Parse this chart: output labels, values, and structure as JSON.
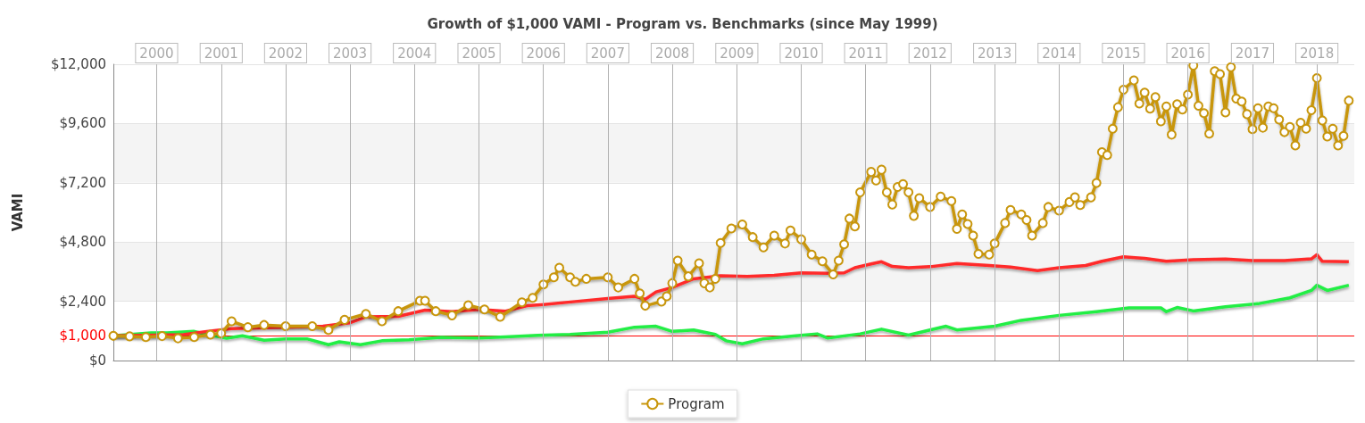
{
  "chart_data": {
    "type": "line",
    "title": "Growth of $1,000 VAMI - Program vs. Benchmarks (since May 1999)",
    "ylabel": "VAMI",
    "xlim": [
      "1999-05",
      "2018-08"
    ],
    "xticks": [
      {
        "value": "2000-01",
        "label": "2000"
      },
      {
        "value": "2001-01",
        "label": "2001"
      },
      {
        "value": "2002-01",
        "label": "2002"
      },
      {
        "value": "2003-01",
        "label": "2003"
      },
      {
        "value": "2004-01",
        "label": "2004"
      },
      {
        "value": "2005-01",
        "label": "2005"
      },
      {
        "value": "2006-01",
        "label": "2006"
      },
      {
        "value": "2007-01",
        "label": "2007"
      },
      {
        "value": "2008-01",
        "label": "2008"
      },
      {
        "value": "2009-01",
        "label": "2009"
      },
      {
        "value": "2010-01",
        "label": "2010"
      },
      {
        "value": "2011-01",
        "label": "2011"
      },
      {
        "value": "2012-01",
        "label": "2012"
      },
      {
        "value": "2013-01",
        "label": "2013"
      },
      {
        "value": "2014-01",
        "label": "2014"
      },
      {
        "value": "2015-01",
        "label": "2015"
      },
      {
        "value": "2016-01",
        "label": "2016"
      },
      {
        "value": "2017-01",
        "label": "2017"
      },
      {
        "value": "2018-01",
        "label": "2018"
      }
    ],
    "ylim": [
      0,
      12000
    ],
    "yticks": [
      {
        "value": 0,
        "label": "$0"
      },
      {
        "value": 2400,
        "label": "$2,400"
      },
      {
        "value": 4800,
        "label": "$4,800"
      },
      {
        "value": 7200,
        "label": "$7,200"
      },
      {
        "value": 9600,
        "label": "$9,600"
      },
      {
        "value": 12000,
        "label": "$12,000"
      }
    ],
    "ref_lines": [
      {
        "axis": "y",
        "value": 1000,
        "label": "$1,000",
        "color": "#ff0000"
      }
    ],
    "grid": true,
    "legend": "bottom",
    "marker": "circle",
    "series": [
      {
        "name": "Program",
        "color": "#c8960c",
        "x": [
          "1999-05",
          "1999-08",
          "1999-11",
          "2000-02",
          "2000-05",
          "2000-08",
          "2000-11",
          "2001-01",
          "2001-03",
          "2001-06",
          "2001-09",
          "2002-01",
          "2002-06",
          "2002-09",
          "2002-12",
          "2003-04",
          "2003-07",
          "2003-10",
          "2004-02",
          "2004-03",
          "2004-05",
          "2004-08",
          "2004-11",
          "2005-02",
          "2005-05",
          "2005-09",
          "2005-11",
          "2006-01",
          "2006-03",
          "2006-04",
          "2006-06",
          "2006-07",
          "2006-09",
          "2007-01",
          "2007-03",
          "2007-06",
          "2007-07",
          "2007-08",
          "2007-11",
          "2007-12",
          "2008-01",
          "2008-02",
          "2008-04",
          "2008-06",
          "2008-07",
          "2008-08",
          "2008-09",
          "2008-10",
          "2008-12",
          "2009-02",
          "2009-04",
          "2009-06",
          "2009-08",
          "2009-10",
          "2009-11",
          "2010-01",
          "2010-03",
          "2010-05",
          "2010-07",
          "2010-08",
          "2010-09",
          "2010-10",
          "2010-11",
          "2010-12",
          "2011-02",
          "2011-03",
          "2011-04",
          "2011-05",
          "2011-06",
          "2011-07",
          "2011-08",
          "2011-09",
          "2011-10",
          "2011-11",
          "2012-01",
          "2012-03",
          "2012-05",
          "2012-06",
          "2012-07",
          "2012-08",
          "2012-09",
          "2012-10",
          "2012-12",
          "2013-01",
          "2013-03",
          "2013-04",
          "2013-06",
          "2013-07",
          "2013-08",
          "2013-10",
          "2013-11",
          "2014-01",
          "2014-03",
          "2014-04",
          "2014-05",
          "2014-07",
          "2014-08",
          "2014-09",
          "2014-10",
          "2014-11",
          "2014-12",
          "2015-01",
          "2015-03",
          "2015-04",
          "2015-05",
          "2015-06",
          "2015-07",
          "2015-08",
          "2015-09",
          "2015-10",
          "2015-11",
          "2015-12",
          "2016-01",
          "2016-02",
          "2016-03",
          "2016-04",
          "2016-05",
          "2016-06",
          "2016-07",
          "2016-08",
          "2016-09",
          "2016-10",
          "2016-11",
          "2016-12",
          "2017-01",
          "2017-02",
          "2017-03",
          "2017-04",
          "2017-05",
          "2017-06",
          "2017-07",
          "2017-08",
          "2017-09",
          "2017-10",
          "2017-11",
          "2017-12",
          "2018-01",
          "2018-02",
          "2018-03",
          "2018-04",
          "2018-05",
          "2018-06",
          "2018-07"
        ],
        "values": [
          1000,
          980,
          950,
          990,
          900,
          950,
          1050,
          1100,
          1590,
          1350,
          1440,
          1390,
          1390,
          1240,
          1650,
          1890,
          1590,
          2000,
          2420,
          2420,
          2000,
          1830,
          2240,
          2070,
          1770,
          2360,
          2540,
          3080,
          3370,
          3760,
          3370,
          3190,
          3310,
          3370,
          2960,
          3310,
          2720,
          2220,
          2390,
          2600,
          3130,
          4050,
          3410,
          3940,
          3130,
          2960,
          3310,
          4760,
          5350,
          5510,
          5000,
          4580,
          5060,
          4740,
          5270,
          4910,
          4290,
          4020,
          3490,
          4050,
          4710,
          5750,
          5430,
          6810,
          7640,
          7290,
          7730,
          6810,
          6320,
          7030,
          7150,
          6810,
          5860,
          6580,
          6220,
          6640,
          6460,
          5330,
          5920,
          5530,
          5060,
          4320,
          4290,
          4740,
          5570,
          6100,
          5920,
          5690,
          5060,
          5570,
          6220,
          6070,
          6420,
          6610,
          6300,
          6610,
          7190,
          8440,
          8320,
          9390,
          10260,
          10970,
          11350,
          10410,
          10850,
          10200,
          10670,
          9690,
          10290,
          9150,
          10380,
          10170,
          10770,
          11950,
          10320,
          10020,
          9190,
          11720,
          11600,
          10050,
          11880,
          10610,
          10490,
          9980,
          9370,
          10220,
          9430,
          10290,
          10220,
          9760,
          9250,
          9460,
          8710,
          9630,
          9390,
          10140,
          11440,
          9720,
          9070,
          9390,
          8710,
          9100,
          10530
        ]
      },
      {
        "color": "#ff2a2a",
        "marker": "none",
        "x": [
          "1999-05",
          "2000-06",
          "2000-10",
          "2001-03",
          "2002-01",
          "2002-08",
          "2003-01",
          "2003-04",
          "2003-10",
          "2004-03",
          "2004-08",
          "2005-01",
          "2005-06",
          "2005-10",
          "2006-01",
          "2006-07",
          "2007-01",
          "2007-06",
          "2007-08",
          "2007-10",
          "2008-01",
          "2008-05",
          "2008-10",
          "2009-03",
          "2009-08",
          "2010-01",
          "2010-06",
          "2010-09",
          "2010-11",
          "2011-02",
          "2011-04",
          "2011-06",
          "2011-09",
          "2012-01",
          "2012-06",
          "2012-12",
          "2013-04",
          "2013-09",
          "2014-01",
          "2014-06",
          "2014-09",
          "2015-01",
          "2015-05",
          "2015-09",
          "2016-02",
          "2016-08",
          "2017-01",
          "2017-07",
          "2017-12",
          "2018-01",
          "2018-02",
          "2018-07"
        ],
        "values": [
          1000,
          1050,
          1170,
          1290,
          1350,
          1390,
          1530,
          1770,
          1790,
          2040,
          1980,
          2070,
          2000,
          2220,
          2270,
          2390,
          2510,
          2600,
          2480,
          2780,
          2960,
          3310,
          3430,
          3410,
          3450,
          3550,
          3530,
          3550,
          3760,
          3910,
          4000,
          3810,
          3760,
          3800,
          3930,
          3850,
          3790,
          3640,
          3760,
          3850,
          4020,
          4200,
          4140,
          4020,
          4080,
          4110,
          4050,
          4050,
          4120,
          4290,
          4020,
          4000
        ]
      },
      {
        "color": "#22ee44",
        "marker": "none",
        "x": [
          "1999-05",
          "1999-12",
          "2000-03",
          "2000-08",
          "2000-11",
          "2001-02",
          "2001-05",
          "2001-09",
          "2002-01",
          "2002-05",
          "2002-09",
          "2002-11",
          "2003-03",
          "2003-07",
          "2003-12",
          "2004-06",
          "2005-01",
          "2005-06",
          "2005-12",
          "2006-06",
          "2007-01",
          "2007-06",
          "2007-10",
          "2008-01",
          "2008-05",
          "2008-09",
          "2008-11",
          "2009-02",
          "2009-06",
          "2009-12",
          "2010-04",
          "2010-06",
          "2010-12",
          "2011-04",
          "2011-09",
          "2012-01",
          "2012-04",
          "2012-06",
          "2013-01",
          "2013-06",
          "2014-01",
          "2014-08",
          "2015-02",
          "2015-08",
          "2015-09",
          "2015-11",
          "2016-02",
          "2016-08",
          "2017-02",
          "2017-08",
          "2017-12",
          "2018-01",
          "2018-03",
          "2018-07"
        ],
        "values": [
          1000,
          1120,
          1120,
          1180,
          1030,
          900,
          1000,
          820,
          880,
          880,
          640,
          760,
          640,
          800,
          840,
          940,
          910,
          960,
          1020,
          1060,
          1150,
          1350,
          1390,
          1180,
          1240,
          1060,
          800,
          680,
          880,
          1000,
          1080,
          910,
          1080,
          1270,
          1030,
          1240,
          1390,
          1240,
          1390,
          1630,
          1830,
          1980,
          2130,
          2130,
          1980,
          2150,
          2010,
          2180,
          2300,
          2540,
          2840,
          3050,
          2840,
          3050
        ]
      }
    ]
  }
}
